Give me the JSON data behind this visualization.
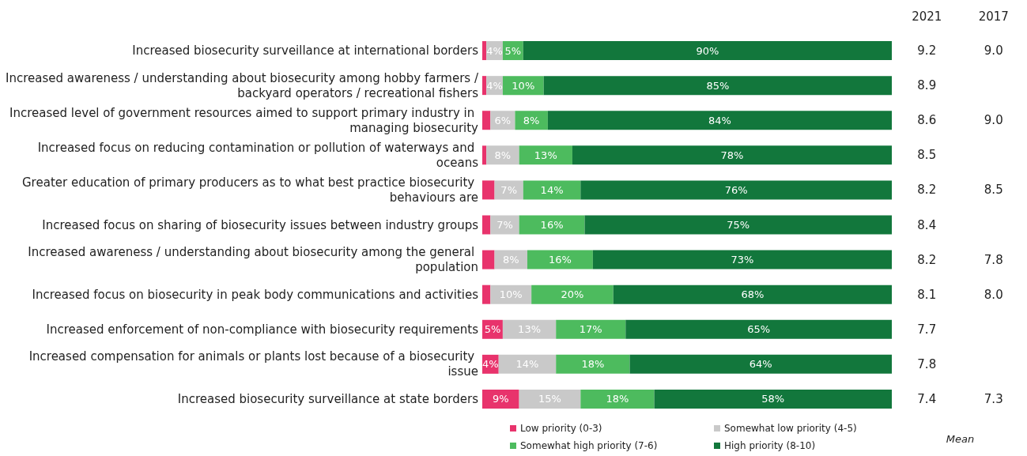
{
  "chart_data": [
    {
      "type": "bar",
      "orientation": "horizontal",
      "stacked": true,
      "legend": "bottom",
      "categories": [
        "Increased biosecurity surveillance at international borders",
        "Increased awareness / understanding about biosecurity among hobby farmers / backyard operators / recreational fishers",
        "Increased level of government resources aimed to support primary industry in managing biosecurity",
        "Increased focus on reducing contamination or pollution of waterways and oceans",
        "Greater education of primary producers as to what best practice biosecurity behaviours are",
        "Increased focus on sharing of biosecurity issues between industry groups",
        "Increased awareness / understanding about biosecurity among the general population",
        "Increased focus on biosecurity in peak body communications and activities",
        "Increased enforcement of non-compliance with biosecurity requirements",
        "Increased compensation for animals or plants lost because of a biosecurity issue",
        "Increased biosecurity surveillance at state borders"
      ],
      "series": [
        {
          "name": "Low priority (0-3)",
          "color": "#e8336c",
          "values": [
            1,
            1,
            2,
            1,
            3,
            2,
            3,
            2,
            5,
            4,
            9
          ],
          "value_labels": [
            null,
            null,
            null,
            null,
            null,
            null,
            null,
            null,
            "5%",
            "4%",
            "9%"
          ]
        },
        {
          "name": "Somewhat low priority (4-5)",
          "color": "#c9c9c9",
          "values": [
            4,
            4,
            6,
            8,
            7,
            7,
            8,
            10,
            13,
            14,
            15
          ],
          "value_labels": [
            "4%",
            "4%",
            "6%",
            "8%",
            "7%",
            "7%",
            "8%",
            "10%",
            "13%",
            "14%",
            "15%"
          ]
        },
        {
          "name": "Somewhat high priority (7-6)",
          "color": "#4dbb5e",
          "values": [
            5,
            10,
            8,
            13,
            14,
            16,
            16,
            20,
            17,
            18,
            18
          ],
          "value_labels": [
            "5%",
            "10%",
            "8%",
            "13%",
            "14%",
            "16%",
            "16%",
            "20%",
            "17%",
            "18%",
            "18%"
          ]
        },
        {
          "name": "High priority (8-10)",
          "color": "#12773c",
          "values": [
            90,
            85,
            84,
            78,
            76,
            75,
            73,
            68,
            65,
            64,
            58
          ],
          "value_labels": [
            "90%",
            "85%",
            "84%",
            "78%",
            "76%",
            "75%",
            "73%",
            "68%",
            "65%",
            "64%",
            "58%"
          ]
        }
      ]
    },
    {
      "type": "heatmap",
      "xlabel": "Mean",
      "data_labels": true,
      "categories": [
        "2021",
        "2017"
      ],
      "y_categories": [
        null,
        null,
        null,
        null,
        null,
        null,
        null,
        null,
        null,
        null,
        null
      ],
      "cells": [
        [
          9.2,
          9.0
        ],
        [
          8.9,
          null
        ],
        [
          8.6,
          9.0
        ],
        [
          8.5,
          null
        ],
        [
          8.2,
          8.5
        ],
        [
          8.4,
          null
        ],
        [
          8.2,
          7.8
        ],
        [
          8.1,
          8.0
        ],
        [
          7.7,
          null
        ],
        [
          7.8,
          null
        ],
        [
          7.4,
          7.3
        ]
      ],
      "cell_labels": [
        [
          "9.2",
          "9.0"
        ],
        [
          "8.9",
          null
        ],
        [
          "8.6",
          "9.0"
        ],
        [
          "8.5",
          null
        ],
        [
          "8.2",
          "8.5"
        ],
        [
          "8.4",
          null
        ],
        [
          "8.2",
          "7.8"
        ],
        [
          "8.1",
          "8.0"
        ],
        [
          "7.7",
          null
        ],
        [
          "7.8",
          null
        ],
        [
          "7.4",
          "7.3"
        ]
      ]
    }
  ]
}
